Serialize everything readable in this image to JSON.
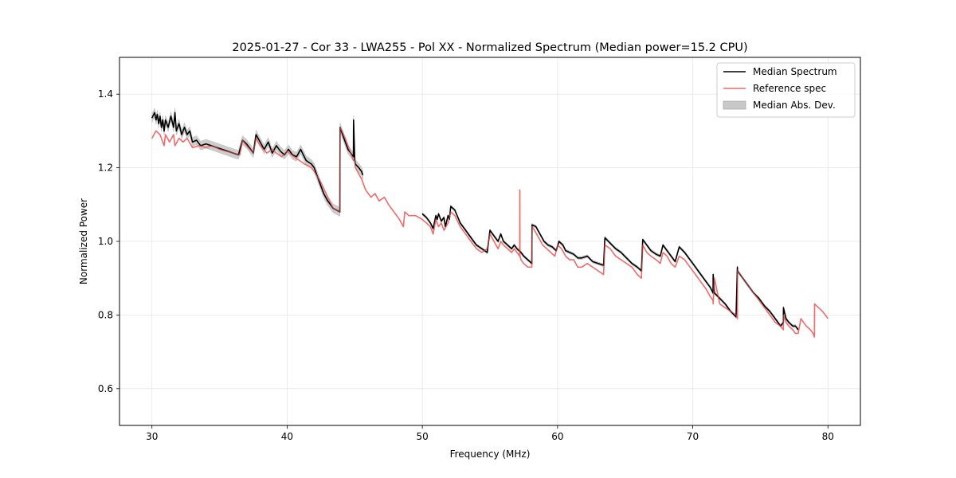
{
  "chart_data": {
    "type": "line",
    "title": "2025-01-27 - Cor 33 - LWA255 - Pol XX - Normalized Spectrum (Median power=15.2 CPU)",
    "xlabel": "Frequency (MHz)",
    "ylabel": "Normalized Power",
    "xlim": [
      27.6,
      82.4
    ],
    "ylim": [
      0.5,
      1.5
    ],
    "xticks": [
      30,
      40,
      50,
      60,
      70,
      80
    ],
    "yticks": [
      0.6,
      0.8,
      1.0,
      1.2,
      1.4
    ],
    "grid": true,
    "legend_position": "upper right",
    "legend": [
      {
        "label": "Median Spectrum",
        "kind": "line",
        "color": "#000000"
      },
      {
        "label": "Reference spec",
        "kind": "line",
        "color": "#f06a6a"
      },
      {
        "label": "Median Abs. Dev.",
        "kind": "patch",
        "color": "#c8c8c8"
      }
    ],
    "series": [
      {
        "name": "Reference spec",
        "color": "#f06a6a",
        "x": [
          30.0,
          30.3,
          30.6,
          30.9,
          31.0,
          31.3,
          31.6,
          31.7,
          32.0,
          32.3,
          32.6,
          33.0,
          33.5,
          34.0,
          34.5,
          35.0,
          35.5,
          36.0,
          36.5,
          36.7,
          37.0,
          37.5,
          37.7,
          38.0,
          38.5,
          38.9,
          39.2,
          39.6,
          40.0,
          40.5,
          40.9,
          41.3,
          41.8,
          42.0,
          42.5,
          43.0,
          43.4,
          43.9,
          43.91,
          44.3,
          44.7,
          44.9,
          45.0,
          45.05,
          45.5,
          45.8,
          46.2,
          46.5,
          46.8,
          47.2,
          47.5,
          47.9,
          48.3,
          48.6,
          48.7,
          49.0,
          49.5,
          50.0,
          50.3,
          50.6,
          50.8,
          51.0,
          51.2,
          51.4,
          51.6,
          51.9,
          52.1,
          52.4,
          52.8,
          53.2,
          53.6,
          54.0,
          54.4,
          54.8,
          55.0,
          55.3,
          55.6,
          55.8,
          56.0,
          56.3,
          56.6,
          56.8,
          57.0,
          57.2,
          57.21,
          57.22,
          57.3,
          57.5,
          57.8,
          58.1,
          58.11,
          58.3,
          58.6,
          58.9,
          59.2,
          59.5,
          59.8,
          60.0,
          60.3,
          60.6,
          60.9,
          61.2,
          61.5,
          61.8,
          62.2,
          62.6,
          63.0,
          63.4,
          63.5,
          63.9,
          64.3,
          64.7,
          65.1,
          65.5,
          65.9,
          66.2,
          66.3,
          66.6,
          66.9,
          67.3,
          67.6,
          67.8,
          68.1,
          68.4,
          68.7,
          69.0,
          69.4,
          69.8,
          70.2,
          70.6,
          71.0,
          71.3,
          71.5,
          71.51,
          71.6,
          72.0,
          72.4,
          72.8,
          73.2,
          73.3,
          73.31,
          73.7,
          74.1,
          74.5,
          74.9,
          75.3,
          75.7,
          76.1,
          76.5,
          76.7,
          76.71,
          76.9,
          77.1,
          77.4,
          77.6,
          77.8,
          78.0,
          78.4,
          78.7,
          78.9,
          79.0,
          79.01,
          79.3,
          79.6,
          80.0
        ],
        "values": [
          1.28,
          1.3,
          1.29,
          1.26,
          1.29,
          1.27,
          1.29,
          1.26,
          1.28,
          1.27,
          1.28,
          1.255,
          1.26,
          1.255,
          1.26,
          1.25,
          1.245,
          1.24,
          1.235,
          1.275,
          1.26,
          1.24,
          1.28,
          1.26,
          1.24,
          1.25,
          1.24,
          1.23,
          1.245,
          1.23,
          1.22,
          1.21,
          1.2,
          1.19,
          1.16,
          1.12,
          1.09,
          1.08,
          1.31,
          1.28,
          1.24,
          1.22,
          1.22,
          1.2,
          1.17,
          1.14,
          1.12,
          1.13,
          1.11,
          1.12,
          1.1,
          1.08,
          1.06,
          1.04,
          1.08,
          1.07,
          1.07,
          1.06,
          1.05,
          1.04,
          1.02,
          1.06,
          1.04,
          1.05,
          1.03,
          1.05,
          1.08,
          1.07,
          1.04,
          1.02,
          1.0,
          0.98,
          0.97,
          0.98,
          1.02,
          1.0,
          0.98,
          1.0,
          0.99,
          0.98,
          0.97,
          0.98,
          0.97,
          0.96,
          1.14,
          0.96,
          0.95,
          0.94,
          0.93,
          0.93,
          1.04,
          1.03,
          1.01,
          0.99,
          0.98,
          0.97,
          0.96,
          0.99,
          0.98,
          0.96,
          0.95,
          0.95,
          0.93,
          0.93,
          0.94,
          0.93,
          0.92,
          0.91,
          0.99,
          0.98,
          0.96,
          0.95,
          0.94,
          0.93,
          0.91,
          0.9,
          0.99,
          0.97,
          0.96,
          0.95,
          0.94,
          0.97,
          0.96,
          0.94,
          0.93,
          0.96,
          0.95,
          0.93,
          0.91,
          0.89,
          0.87,
          0.85,
          0.84,
          0.83,
          0.9,
          0.83,
          0.82,
          0.81,
          0.8,
          0.79,
          0.92,
          0.9,
          0.88,
          0.86,
          0.84,
          0.82,
          0.8,
          0.78,
          0.77,
          0.76,
          0.8,
          0.78,
          0.77,
          0.76,
          0.75,
          0.75,
          0.79,
          0.77,
          0.76,
          0.75,
          0.74,
          0.83,
          0.82,
          0.81,
          0.79
        ]
      },
      {
        "name": "Median Spectrum",
        "color": "#000000",
        "band": "Median Abs. Dev.",
        "band_color": "#c8c8c8",
        "band_halfwidth": 0.012,
        "x": [
          30.0,
          30.2,
          30.3,
          30.4,
          30.5,
          30.6,
          30.7,
          30.8,
          30.9,
          31.0,
          31.2,
          31.4,
          31.6,
          31.7,
          31.8,
          32.0,
          32.2,
          32.4,
          32.6,
          32.8,
          33.0,
          33.3,
          33.6,
          34.0,
          34.4,
          34.8,
          35.2,
          35.6,
          36.0,
          36.4,
          36.7,
          37.0,
          37.3,
          37.5,
          37.7,
          38.0,
          38.3,
          38.6,
          38.9,
          39.2,
          39.5,
          39.8,
          40.1,
          40.4,
          40.7,
          41.0,
          41.4,
          41.8,
          42.0,
          42.3,
          42.7,
          43.0,
          43.4,
          43.9,
          43.91,
          44.2,
          44.5,
          44.9,
          44.91,
          45.0,
          45.05,
          45.3,
          45.5,
          45.6
        ],
        "values": [
          1.335,
          1.35,
          1.33,
          1.345,
          1.32,
          1.34,
          1.31,
          1.33,
          1.3,
          1.33,
          1.31,
          1.34,
          1.31,
          1.35,
          1.3,
          1.32,
          1.29,
          1.31,
          1.29,
          1.3,
          1.27,
          1.275,
          1.26,
          1.265,
          1.26,
          1.255,
          1.25,
          1.245,
          1.24,
          1.235,
          1.275,
          1.265,
          1.25,
          1.24,
          1.29,
          1.27,
          1.25,
          1.27,
          1.24,
          1.26,
          1.245,
          1.235,
          1.25,
          1.235,
          1.23,
          1.25,
          1.22,
          1.21,
          1.2,
          1.17,
          1.13,
          1.11,
          1.09,
          1.08,
          1.31,
          1.28,
          1.25,
          1.23,
          1.33,
          1.22,
          1.21,
          1.2,
          1.19,
          1.18
        ]
      },
      {
        "name": "Median Spectrum",
        "color": "#000000",
        "band": "Median Abs. Dev.",
        "band_color": "#c8c8c8",
        "band_halfwidth": 0.004,
        "x": [
          50.0,
          50.3,
          50.6,
          50.8,
          51.0,
          51.1,
          51.2,
          51.4,
          51.6,
          51.7,
          51.9,
          52.0,
          52.1,
          52.4,
          52.8,
          53.2,
          53.6,
          54.0,
          54.4,
          54.8,
          55.0,
          55.3,
          55.6,
          55.8,
          56.0,
          56.3,
          56.6,
          56.8,
          57.0,
          57.3,
          57.5,
          57.8,
          58.1,
          58.11,
          58.4,
          58.7,
          59.0,
          59.3,
          59.6,
          59.9,
          60.1,
          60.4,
          60.6,
          60.9,
          61.2,
          61.5,
          61.8,
          62.2,
          62.6,
          63.0,
          63.4,
          63.5,
          63.9,
          64.3,
          64.7,
          65.1,
          65.5,
          65.9,
          66.2,
          66.3,
          66.6,
          66.9,
          67.3,
          67.6,
          67.8,
          68.1,
          68.4,
          68.7,
          69.0,
          69.4,
          69.8,
          70.2,
          70.6,
          71.0,
          71.3,
          71.5,
          71.51,
          71.6,
          72.0,
          72.4,
          72.8,
          73.2,
          73.3,
          73.31,
          73.7,
          74.1,
          74.5,
          74.9,
          75.3,
          75.7,
          76.1,
          76.5,
          76.7,
          76.71,
          76.9,
          77.1,
          77.4,
          77.6,
          77.8
        ],
        "values": [
          1.075,
          1.065,
          1.05,
          1.035,
          1.07,
          1.06,
          1.075,
          1.055,
          1.065,
          1.04,
          1.07,
          1.06,
          1.095,
          1.085,
          1.05,
          1.03,
          1.01,
          0.99,
          0.98,
          0.97,
          1.03,
          1.015,
          1.0,
          1.02,
          1.0,
          0.99,
          0.98,
          0.99,
          0.98,
          0.97,
          0.96,
          0.95,
          0.94,
          1.045,
          1.04,
          1.02,
          1.0,
          0.99,
          0.985,
          0.975,
          1.0,
          0.99,
          0.975,
          0.97,
          0.965,
          0.955,
          0.955,
          0.96,
          0.945,
          0.94,
          0.935,
          1.01,
          0.995,
          0.98,
          0.97,
          0.955,
          0.94,
          0.93,
          0.92,
          1.005,
          0.99,
          0.975,
          0.965,
          0.96,
          0.99,
          0.975,
          0.96,
          0.945,
          0.985,
          0.97,
          0.95,
          0.93,
          0.91,
          0.89,
          0.875,
          0.86,
          0.91,
          0.86,
          0.845,
          0.83,
          0.81,
          0.795,
          0.93,
          0.92,
          0.9,
          0.88,
          0.86,
          0.845,
          0.825,
          0.81,
          0.79,
          0.77,
          0.78,
          0.82,
          0.79,
          0.78,
          0.77,
          0.77,
          0.76
        ]
      }
    ]
  }
}
